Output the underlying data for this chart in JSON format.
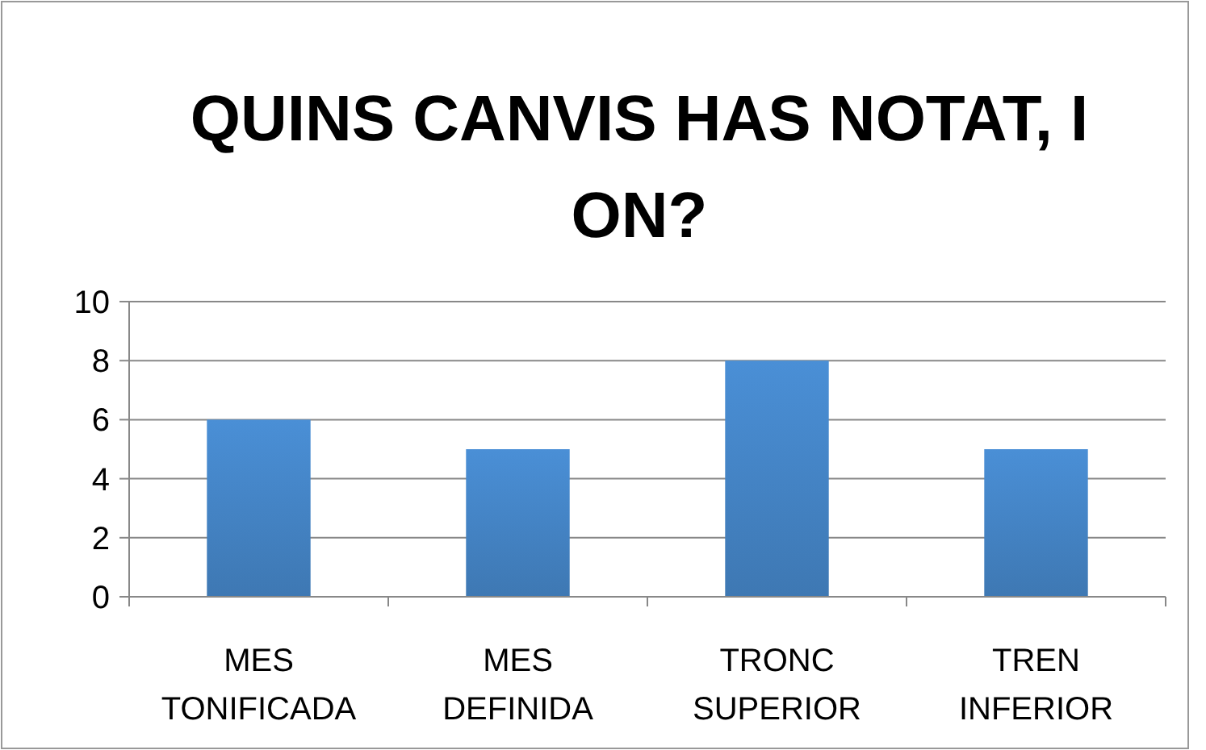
{
  "chart_data": {
    "type": "bar",
    "title": "QUINS CANVIS HAS NOTAT, I ON?",
    "categories": [
      "MES TONIFICADA",
      "MES DEFINIDA",
      "TRONC SUPERIOR",
      "TREN INFERIOR"
    ],
    "values": [
      6,
      5,
      8,
      5
    ],
    "color": "#4a8fd6",
    "ylim": [
      0,
      10
    ],
    "yticks": [
      0,
      2,
      4,
      6,
      8,
      10
    ],
    "grid": "y"
  }
}
